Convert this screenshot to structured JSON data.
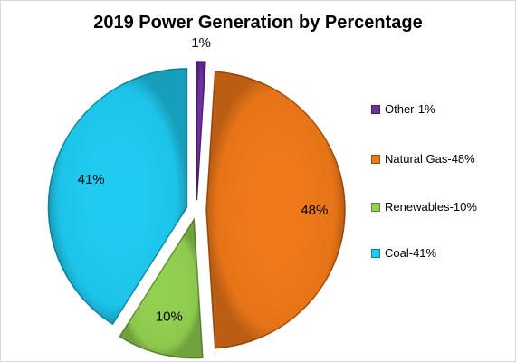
{
  "chart_data": {
    "type": "pie",
    "title": "2019 Power Generation by Percentage",
    "slices": [
      {
        "name": "Other",
        "value": 1,
        "label": "1%",
        "legend": "Other-1%",
        "color": "#7030a0"
      },
      {
        "name": "Natural Gas",
        "value": 48,
        "label": "48%",
        "legend": "Natural Gas-48%",
        "color": "#f07818"
      },
      {
        "name": "Renewables",
        "value": 10,
        "label": "10%",
        "legend": "Renewables-10%",
        "color": "#92d050"
      },
      {
        "name": "Coal",
        "value": 41,
        "label": "41%",
        "legend": "Coal-41%",
        "color": "#1ecbf2"
      }
    ],
    "exploded": true,
    "legend_position": "right"
  }
}
